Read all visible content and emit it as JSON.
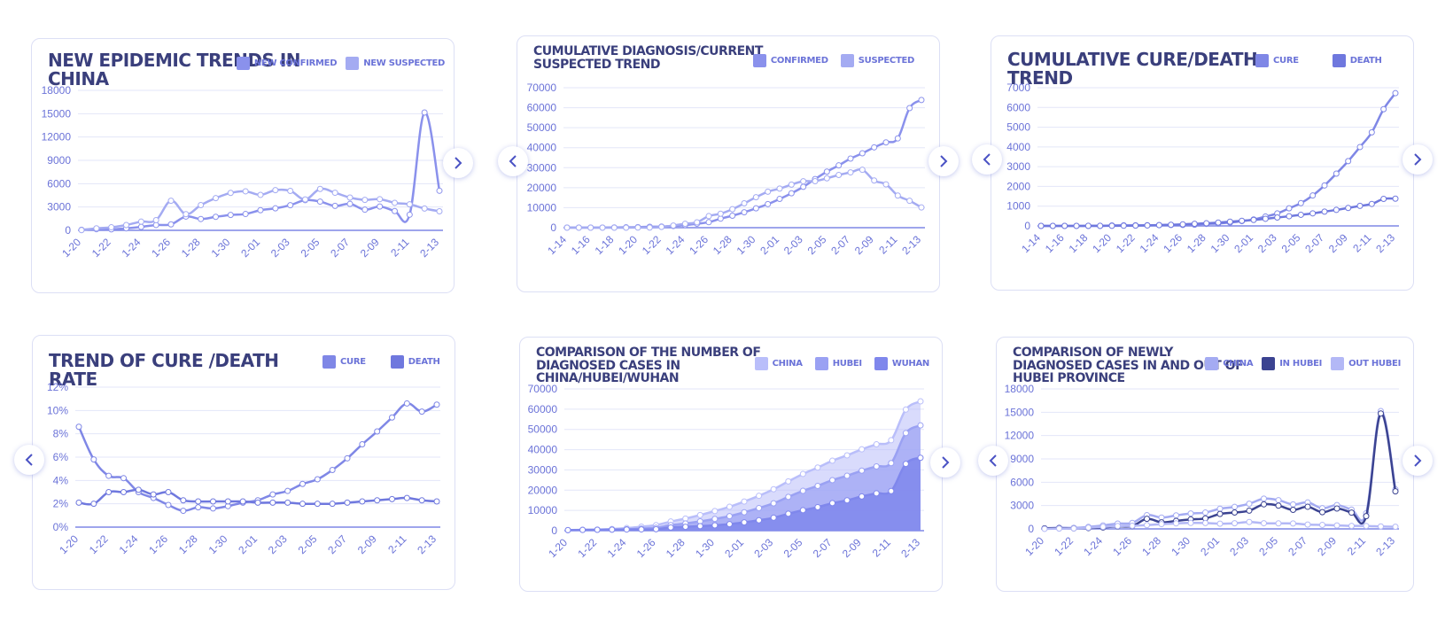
{
  "colors": {
    "card_border": "#dcdff5",
    "axis_text": "#6b73d8",
    "grid": "#e3e6f8",
    "title": "#3a3f7c"
  },
  "icons": {
    "prev": "chevron-left-icon",
    "next": "chevron-right-icon"
  },
  "charts": [
    {
      "id": "new-epidemic",
      "title": "NEW EPIDEMIC TRENDS IN CHINA",
      "legend": [
        {
          "label": "NEW CONFIRMED",
          "color": "#8a91ec"
        },
        {
          "label": "NEW SUSPECTED",
          "color": "#a4abf2"
        }
      ],
      "chart_data": {
        "type": "line",
        "title": "NEW EPIDEMIC TRENDS IN CHINA",
        "x": [
          "1-20",
          "1-21",
          "1-22",
          "1-23",
          "1-24",
          "1-25",
          "1-26",
          "1-27",
          "1-28",
          "1-29",
          "1-30",
          "1-31",
          "2-01",
          "2-02",
          "2-03",
          "2-04",
          "2-05",
          "2-06",
          "2-07",
          "2-08",
          "2-09",
          "2-10",
          "2-11",
          "2-12",
          "2-13"
        ],
        "xticks": [
          "1-20",
          "1-22",
          "1-24",
          "1-26",
          "1-28",
          "1-30",
          "2-01",
          "2-03",
          "2-05",
          "2-07",
          "2-09",
          "2-11",
          "2-13"
        ],
        "ylim": [
          0,
          18000
        ],
        "yticks": [
          "0",
          "3000",
          "6000",
          "9000",
          "12000",
          "15000",
          "18000"
        ],
        "series": [
          {
            "name": "NEW CONFIRMED",
            "color": "#8a91ec",
            "values": [
              77,
              149,
              131,
              259,
              444,
              688,
              769,
              1771,
              1459,
              1737,
              1982,
              2102,
              2590,
              2829,
              3235,
              3887,
              3694,
              3143,
              3399,
              2656,
              3062,
              2478,
              2015,
              15152,
              5090
            ]
          },
          {
            "name": "NEW SUSPECTED",
            "color": "#a4abf2",
            "values": [
              27,
              257,
              392,
              680,
              1118,
              1309,
              3806,
              2077,
              3248,
              4148,
              4812,
              5019,
              4562,
              5173,
              5072,
              3971,
              5328,
              4833,
              4214,
              3916,
              4008,
              3536,
              3342,
              2807,
              2450
            ]
          }
        ],
        "grid": true,
        "legend": "top-right"
      }
    },
    {
      "id": "cumulative-diagnosis",
      "title": "CUMULATIVE DIAGNOSIS/CURRENT SUSPECTED TREND",
      "legend": [
        {
          "label": "CONFIRMED",
          "color": "#8a91ec"
        },
        {
          "label": "SUSPECTED",
          "color": "#a4abf2"
        }
      ],
      "chart_data": {
        "type": "line",
        "title": "CUMULATIVE DIAGNOSIS/CURRENT SUSPECTED TREND",
        "x": [
          "1-14",
          "1-15",
          "1-16",
          "1-17",
          "1-18",
          "1-19",
          "1-20",
          "1-21",
          "1-22",
          "1-23",
          "1-24",
          "1-25",
          "1-26",
          "1-27",
          "1-28",
          "1-29",
          "1-30",
          "1-31",
          "2-01",
          "2-02",
          "2-03",
          "2-04",
          "2-05",
          "2-06",
          "2-07",
          "2-08",
          "2-09",
          "2-10",
          "2-11",
          "2-12",
          "2-13"
        ],
        "xticks": [
          "1-14",
          "1-16",
          "1-18",
          "1-20",
          "1-22",
          "1-24",
          "1-26",
          "1-28",
          "1-30",
          "2-01",
          "2-03",
          "2-05",
          "2-07",
          "2-09",
          "2-11",
          "2-13"
        ],
        "ylim": [
          0,
          70000
        ],
        "yticks": [
          "0",
          "10000",
          "20000",
          "30000",
          "40000",
          "50000",
          "60000",
          "70000"
        ],
        "series": [
          {
            "name": "CONFIRMED",
            "color": "#8a91ec",
            "values": [
              41,
              41,
              45,
              62,
              121,
              198,
              291,
              440,
              571,
              830,
              1287,
              1975,
              2744,
              4515,
              5974,
              7711,
              9692,
              11791,
              14380,
              17205,
              20438,
              24324,
              28018,
              31161,
              34546,
              37198,
              40171,
              42638,
              44653,
              59804,
              63851
            ]
          },
          {
            "name": "SUSPECTED",
            "color": "#a4abf2",
            "values": [
              0,
              0,
              0,
              0,
              0,
              0,
              54,
              37,
              393,
              1072,
              1965,
              2684,
              5794,
              6973,
              9239,
              12167,
              15238,
              17988,
              19544,
              21558,
              23214,
              23260,
              24702,
              26359,
              27657,
              28942,
              23589,
              21675,
              16067,
              13435,
              10109
            ]
          }
        ],
        "grid": true,
        "legend": "top-right"
      }
    },
    {
      "id": "cure-death-trend",
      "title": "CUMULATIVE CURE/DEATH TREND",
      "legend": [
        {
          "label": "CURE",
          "color": "#7f87e6"
        },
        {
          "label": "DEATH",
          "color": "#6f78de"
        }
      ],
      "chart_data": {
        "type": "line",
        "title": "CUMULATIVE CURE/DEATH TREND",
        "x": [
          "1-14",
          "1-15",
          "1-16",
          "1-17",
          "1-18",
          "1-19",
          "1-20",
          "1-21",
          "1-22",
          "1-23",
          "1-24",
          "1-25",
          "1-26",
          "1-27",
          "1-28",
          "1-29",
          "1-30",
          "1-31",
          "2-01",
          "2-02",
          "2-03",
          "2-04",
          "2-05",
          "2-06",
          "2-07",
          "2-08",
          "2-09",
          "2-10",
          "2-11",
          "2-12",
          "2-13"
        ],
        "xticks": [
          "1-14",
          "1-16",
          "1-18",
          "1-20",
          "1-22",
          "1-24",
          "1-26",
          "1-28",
          "1-30",
          "2-01",
          "2-03",
          "2-05",
          "2-07",
          "2-09",
          "2-11",
          "2-13"
        ],
        "ylim": [
          0,
          7000
        ],
        "yticks": [
          "0",
          "1000",
          "2000",
          "3000",
          "4000",
          "5000",
          "6000",
          "7000"
        ],
        "series": [
          {
            "name": "CURE",
            "color": "#7f87e6",
            "values": [
              0,
              0,
              0,
              0,
              0,
              0,
              25,
              28,
              28,
              34,
              38,
              49,
              51,
              60,
              103,
              124,
              171,
              243,
              328,
              475,
              632,
              892,
              1153,
              1540,
              2050,
              2649,
              3281,
              3996,
              4740,
              5911,
              6723
            ]
          },
          {
            "name": "DEATH",
            "color": "#6f78de",
            "values": [
              1,
              1,
              2,
              2,
              3,
              3,
              6,
              9,
              17,
              25,
              41,
              56,
              80,
              106,
              132,
              170,
              213,
              259,
              304,
              361,
              425,
              490,
              563,
              636,
              722,
              811,
              908,
              1016,
              1113,
              1367,
              1380
            ]
          }
        ],
        "grid": true,
        "legend": "top-right"
      }
    },
    {
      "id": "cure-death-rate",
      "title": "TREND OF CURE /DEATH RATE",
      "legend": [
        {
          "label": "CURE",
          "color": "#7f87e6"
        },
        {
          "label": "DEATH",
          "color": "#6f78de"
        }
      ],
      "chart_data": {
        "type": "line",
        "title": "TREND OF CURE /DEATH RATE",
        "x": [
          "1-20",
          "1-21",
          "1-22",
          "1-23",
          "1-24",
          "1-25",
          "1-26",
          "1-27",
          "1-28",
          "1-29",
          "1-30",
          "1-31",
          "2-01",
          "2-02",
          "2-03",
          "2-04",
          "2-05",
          "2-06",
          "2-07",
          "2-08",
          "2-09",
          "2-10",
          "2-11",
          "2-12",
          "2-13"
        ],
        "xticks": [
          "1-20",
          "1-22",
          "1-24",
          "1-26",
          "1-28",
          "1-30",
          "2-01",
          "2-03",
          "2-05",
          "2-07",
          "2-09",
          "2-11",
          "2-13"
        ],
        "ylim": [
          0,
          12
        ],
        "yticks": [
          "0%",
          "2%",
          "4%",
          "6%",
          "8%",
          "10%",
          "12%"
        ],
        "series": [
          {
            "name": "CURE",
            "color": "#7f87e6",
            "values": [
              8.6,
              5.8,
              4.4,
              4.2,
              3.0,
              2.5,
              1.9,
              1.4,
              1.7,
              1.6,
              1.8,
              2.1,
              2.3,
              2.8,
              3.1,
              3.7,
              4.1,
              4.9,
              5.9,
              7.1,
              8.2,
              9.4,
              10.6,
              9.9,
              10.5
            ]
          },
          {
            "name": "DEATH",
            "color": "#6f78de",
            "values": [
              2.1,
              2.0,
              3.0,
              3.0,
              3.2,
              2.8,
              3.0,
              2.3,
              2.2,
              2.2,
              2.2,
              2.2,
              2.1,
              2.1,
              2.1,
              2.0,
              2.0,
              2.0,
              2.1,
              2.2,
              2.3,
              2.4,
              2.5,
              2.3,
              2.2
            ]
          }
        ],
        "grid": true,
        "legend": "top-right"
      }
    },
    {
      "id": "china-hubei-wuhan",
      "title": "COMPARISON OF THE NUMBER OF DIAGNOSED CASES IN CHINA/HUBEI/WUHAN",
      "legend": [
        {
          "label": "CHINA",
          "color": "#b9befa"
        },
        {
          "label": "HUBEI",
          "color": "#9aa1f3"
        },
        {
          "label": "WUHAN",
          "color": "#7f87ec"
        }
      ],
      "chart_data": {
        "type": "area",
        "title": "COMPARISON OF THE NUMBER OF DIAGNOSED CASES IN CHINA/HUBEI/WUHAN",
        "x": [
          "1-20",
          "1-21",
          "1-22",
          "1-23",
          "1-24",
          "1-25",
          "1-26",
          "1-27",
          "1-28",
          "1-29",
          "1-30",
          "1-31",
          "2-01",
          "2-02",
          "2-03",
          "2-04",
          "2-05",
          "2-06",
          "2-07",
          "2-08",
          "2-09",
          "2-10",
          "2-11",
          "2-12",
          "2-13"
        ],
        "xticks": [
          "1-20",
          "1-22",
          "1-24",
          "1-26",
          "1-28",
          "1-30",
          "2-01",
          "2-03",
          "2-05",
          "2-07",
          "2-09",
          "2-11",
          "2-13"
        ],
        "ylim": [
          0,
          70000
        ],
        "yticks": [
          "0",
          "10000",
          "20000",
          "30000",
          "40000",
          "50000",
          "60000",
          "70000"
        ],
        "series": [
          {
            "name": "CHINA",
            "color": "#b9befa",
            "values": [
              291,
              440,
              571,
              830,
              1287,
              1975,
              2744,
              4515,
              5974,
              7711,
              9692,
              11791,
              14380,
              17205,
              20438,
              24324,
              28018,
              31161,
              34546,
              37198,
              40171,
              42638,
              44653,
              59804,
              63851
            ]
          },
          {
            "name": "HUBEI",
            "color": "#9aa1f3",
            "values": [
              270,
              375,
              444,
              549,
              729,
              1052,
              1423,
              2714,
              3554,
              4586,
              5806,
              7153,
              9074,
              11177,
              13522,
              16678,
              19665,
              22112,
              24953,
              27100,
              29631,
              31728,
              33366,
              48206,
              51986
            ]
          },
          {
            "name": "WUHAN",
            "color": "#7f87ec",
            "values": [
              258,
              363,
              425,
              495,
              572,
              618,
              698,
              1590,
              1905,
              2261,
              2639,
              3215,
              4109,
              5142,
              6384,
              8351,
              10117,
              11618,
              13603,
              14982,
              16902,
              18454,
              19558,
              32994,
              35991
            ]
          }
        ],
        "grid": true,
        "legend": "top-right"
      }
    },
    {
      "id": "newly-diagnosed",
      "title": "COMPARISON OF NEWLY DIAGNOSED CASES IN AND OUT OF HUBEI PROVINCE",
      "legend": [
        {
          "label": "CHINA",
          "color": "#a4abf2"
        },
        {
          "label": "IN HUBEI",
          "color": "#3b4391"
        },
        {
          "label": "OUT HUBEI",
          "color": "#b3b8f6"
        }
      ],
      "chart_data": {
        "type": "line",
        "title": "COMPARISON OF NEWLY DIAGNOSED CASES IN AND OUT OF HUBEI PROVINCE",
        "x": [
          "1-20",
          "1-21",
          "1-22",
          "1-23",
          "1-24",
          "1-25",
          "1-26",
          "1-27",
          "1-28",
          "1-29",
          "1-30",
          "1-31",
          "2-01",
          "2-02",
          "2-03",
          "2-04",
          "2-05",
          "2-06",
          "2-07",
          "2-08",
          "2-09",
          "2-10",
          "2-11",
          "2-12",
          "2-13"
        ],
        "xticks": [
          "1-20",
          "1-22",
          "1-24",
          "1-26",
          "1-28",
          "1-30",
          "2-01",
          "2-03",
          "2-05",
          "2-07",
          "2-09",
          "2-11",
          "2-13"
        ],
        "ylim": [
          0,
          18000
        ],
        "yticks": [
          "0",
          "3000",
          "6000",
          "9000",
          "12000",
          "15000",
          "18000"
        ],
        "series": [
          {
            "name": "CHINA",
            "color": "#a4abf2",
            "values": [
              77,
              149,
              131,
              259,
              444,
              688,
              769,
              1771,
              1459,
              1737,
              1982,
              2102,
              2590,
              2829,
              3235,
              3887,
              3694,
              3143,
              3399,
              2656,
              3062,
              2478,
              2015,
              15152,
              5090
            ]
          },
          {
            "name": "IN HUBEI",
            "color": "#3b4391",
            "values": [
              72,
              105,
              69,
              105,
              180,
              323,
              371,
              1291,
              840,
              1032,
              1220,
              1347,
              1921,
              2103,
              2345,
              3156,
              2987,
              2447,
              2841,
              2147,
              2618,
              2097,
              1638,
              14840,
              4823
            ]
          },
          {
            "name": "OUT HUBEI",
            "color": "#b3b8f6",
            "values": [
              5,
              44,
              62,
              154,
              264,
              365,
              398,
              480,
              619,
              705,
              762,
              755,
              669,
              726,
              890,
              731,
              707,
              696,
              558,
              509,
              444,
              381,
              377,
              312,
              267
            ]
          }
        ],
        "grid": true,
        "legend": "top-right"
      }
    }
  ]
}
